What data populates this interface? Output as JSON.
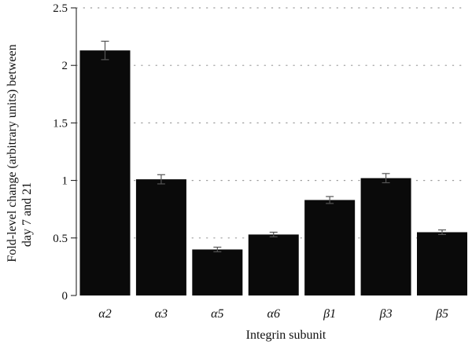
{
  "chart_data": {
    "type": "bar",
    "categories": [
      "α2",
      "α3",
      "α5",
      "α6",
      "β1",
      "β3",
      "β5"
    ],
    "values": [
      2.13,
      1.01,
      0.4,
      0.53,
      0.83,
      1.02,
      0.55
    ],
    "errors": [
      0.08,
      0.04,
      0.02,
      0.02,
      0.03,
      0.04,
      0.02
    ],
    "xlabel": "Integrin subunit",
    "ylabel_lines": [
      "Fold-level change (arbitrary units) between",
      "day 7 and 21"
    ],
    "ylim": [
      0,
      2.5
    ],
    "yticks": [
      0,
      0.5,
      1,
      1.5,
      2,
      2.5
    ],
    "ytick_labels": [
      "0",
      "0.5",
      "1",
      "1.5",
      "2",
      "2.5"
    ],
    "grid": "horizontal dotted",
    "colors": {
      "bar": "#0a0a0a",
      "error_bar": "#555555",
      "grid": "#9a9a9a",
      "axis": "#111111"
    }
  }
}
